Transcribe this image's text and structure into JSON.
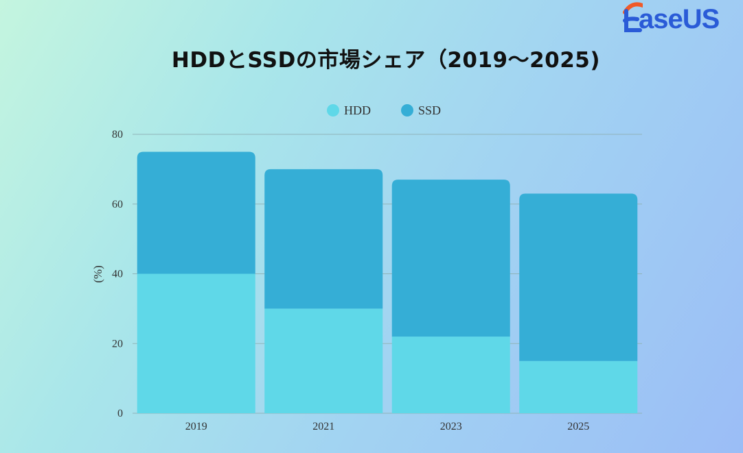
{
  "brand": {
    "name": "aseUS",
    "brand_color": "#2a5bd7",
    "accent_color": "#f05a28"
  },
  "chart_data": {
    "type": "bar",
    "stacked": true,
    "title": "HDDとSSDの市場シェア（2019～2025)",
    "xlabel": "",
    "ylabel": "(%)",
    "ylim": [
      0,
      80
    ],
    "yticks": [
      "0",
      "20",
      "40",
      "60",
      "80"
    ],
    "categories": [
      "2019",
      "2021",
      "2023",
      "2025"
    ],
    "series": [
      {
        "name": "HDD",
        "color": "#5fd8e8",
        "values": [
          40,
          30,
          22,
          15
        ]
      },
      {
        "name": "SSD",
        "color": "#35aed6",
        "values": [
          35,
          40,
          45,
          48
        ]
      }
    ],
    "legend_position": "top-center",
    "grid": true
  }
}
